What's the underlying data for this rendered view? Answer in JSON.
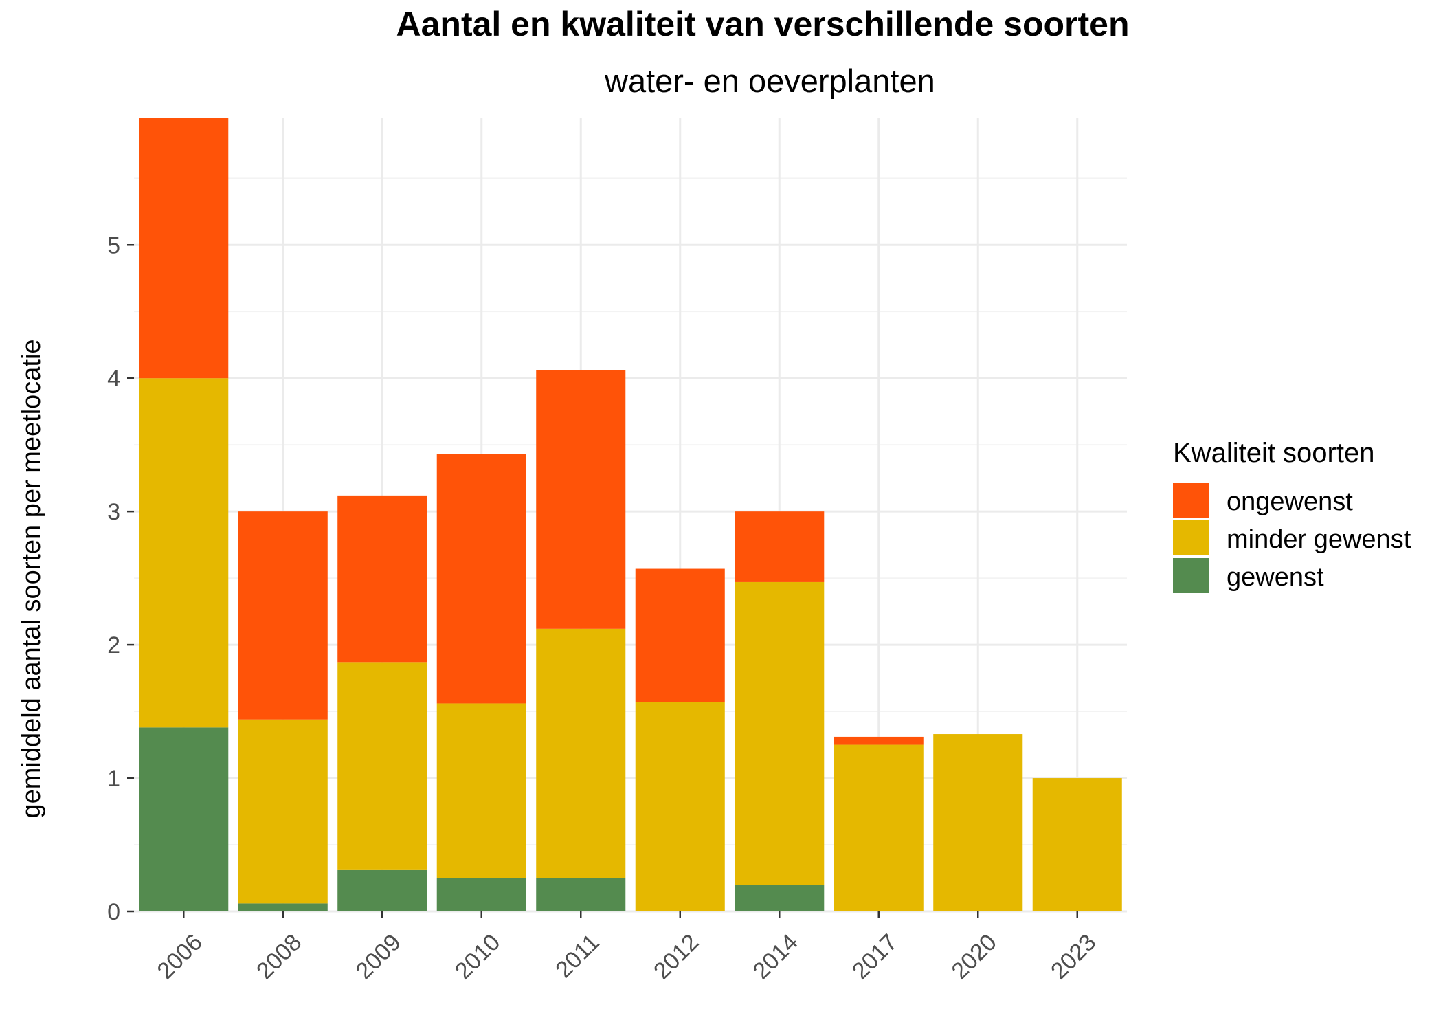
{
  "chart_data": {
    "type": "bar",
    "stacked": true,
    "title": "Aantal en kwaliteit van verschillende soorten",
    "subtitle": "water- en oeverplanten",
    "xlabel": "",
    "ylabel": "gemiddeld aantal soorten per meetlocatie",
    "categories": [
      "2006",
      "2008",
      "2009",
      "2010",
      "2011",
      "2012",
      "2014",
      "2017",
      "2020",
      "2023"
    ],
    "ylim": [
      0,
      5.95
    ],
    "yticks": [
      0,
      1,
      2,
      3,
      4,
      5
    ],
    "ytick_labels": [
      "0",
      "1",
      "2",
      "3",
      "4",
      "5"
    ],
    "grid": true,
    "legend": {
      "title": "Kwaliteit soorten",
      "position": "right",
      "entries": [
        "ongewenst",
        "minder gewenst",
        "gewenst"
      ]
    },
    "series": [
      {
        "name": "gewenst",
        "color": "#548B4F",
        "values": [
          1.38,
          0.06,
          0.31,
          0.25,
          0.25,
          0,
          0.2,
          0,
          0,
          0
        ]
      },
      {
        "name": "minder gewenst",
        "color": "#E5B800",
        "values": [
          2.62,
          1.38,
          1.56,
          1.31,
          1.87,
          1.57,
          2.27,
          1.25,
          1.33,
          1.0
        ]
      },
      {
        "name": "ongewenst",
        "color": "#FF5308",
        "values": [
          1.95,
          1.56,
          1.25,
          1.87,
          1.94,
          1.0,
          0.53,
          0.06,
          0,
          0
        ]
      }
    ]
  }
}
